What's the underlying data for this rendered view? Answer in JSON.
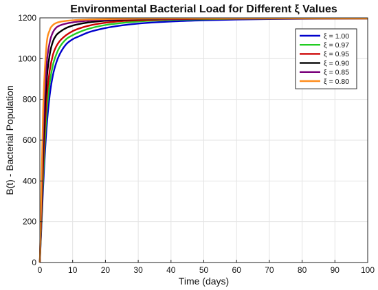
{
  "chart_data": {
    "type": "line",
    "title": "Environmental Bacterial Load for Different  ξ Values",
    "xlabel": "Time (days)",
    "ylabel": "B(t) - Bacterial Population",
    "xlim": [
      0,
      100
    ],
    "ylim": [
      0,
      1200
    ],
    "xticks": [
      0,
      10,
      20,
      30,
      40,
      50,
      60,
      70,
      80,
      90,
      100
    ],
    "yticks": [
      0,
      200,
      400,
      600,
      800,
      1000,
      1200
    ],
    "grid": true,
    "legend_position": "top-right",
    "x": [
      0,
      1,
      2,
      3,
      4,
      5,
      6,
      8,
      10,
      12,
      15,
      20,
      25,
      30,
      40,
      50,
      60,
      70,
      80,
      90,
      100
    ],
    "series": [
      {
        "name": "ξ = 1.00",
        "color": "#0000cc",
        "values": [
          0,
          370,
          650,
          820,
          920,
          980,
          1020,
          1070,
          1095,
          1110,
          1130,
          1150,
          1163,
          1172,
          1182,
          1188,
          1192,
          1194,
          1195,
          1196,
          1197
        ]
      },
      {
        "name": "ξ = 0.97",
        "color": "#22cc22",
        "values": [
          0,
          420,
          720,
          880,
          970,
          1020,
          1055,
          1095,
          1115,
          1130,
          1147,
          1165,
          1175,
          1182,
          1190,
          1193,
          1195,
          1196,
          1197,
          1197,
          1197
        ]
      },
      {
        "name": "ξ = 0.95",
        "color": "#cc0000",
        "values": [
          0,
          480,
          790,
          940,
          1020,
          1060,
          1085,
          1115,
          1135,
          1148,
          1162,
          1176,
          1184,
          1188,
          1193,
          1195,
          1196,
          1197,
          1197,
          1197,
          1197
        ]
      },
      {
        "name": "ξ = 0.90",
        "color": "#000000",
        "values": [
          0,
          560,
          880,
          1020,
          1085,
          1115,
          1130,
          1150,
          1162,
          1170,
          1178,
          1186,
          1191,
          1193,
          1195,
          1196,
          1197,
          1197,
          1197,
          1197,
          1197
        ]
      },
      {
        "name": "ξ = 0.85",
        "color": "#7a007a",
        "values": [
          0,
          640,
          960,
          1080,
          1130,
          1152,
          1162,
          1172,
          1178,
          1182,
          1186,
          1191,
          1194,
          1195,
          1196,
          1197,
          1197,
          1197,
          1197,
          1197,
          1197
        ]
      },
      {
        "name": "ξ = 0.80",
        "color": "#ff8c1a",
        "values": [
          0,
          750,
          1060,
          1140,
          1165,
          1175,
          1180,
          1185,
          1188,
          1190,
          1192,
          1194,
          1195,
          1196,
          1197,
          1197,
          1197,
          1197,
          1197,
          1197,
          1197
        ]
      }
    ]
  }
}
